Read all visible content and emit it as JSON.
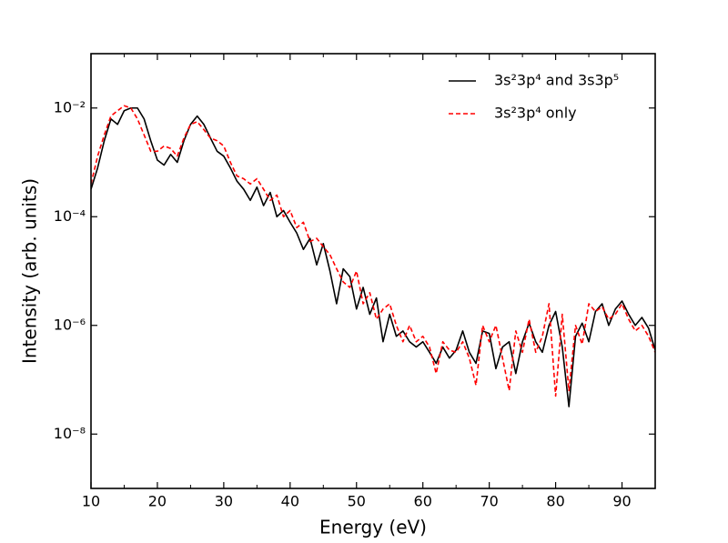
{
  "chart_data": {
    "type": "line",
    "xlabel": "Energy (eV)",
    "ylabel": "Intensity (arb. units)",
    "xlim": [
      10,
      95
    ],
    "ylim": [
      1e-09,
      0.1
    ],
    "yscale": "log",
    "xticks": [
      10,
      20,
      30,
      40,
      50,
      60,
      70,
      80,
      90
    ],
    "xminorticks": [
      15,
      25,
      35,
      45,
      55,
      65,
      75,
      85,
      95
    ],
    "yticks": [
      {
        "value": 1e-08,
        "label": "10⁻⁸"
      },
      {
        "value": 1e-06,
        "label": "10⁻⁶"
      },
      {
        "value": 0.0001,
        "label": "10⁻⁴"
      },
      {
        "value": 0.01,
        "label": "10⁻²"
      }
    ],
    "legend": "upper right",
    "x": [
      10,
      11,
      12,
      13,
      14,
      15,
      16,
      17,
      18,
      19,
      20,
      21,
      22,
      23,
      24,
      25,
      26,
      27,
      28,
      29,
      30,
      31,
      32,
      33,
      34,
      35,
      36,
      37,
      38,
      39,
      40,
      41,
      42,
      43,
      44,
      45,
      46,
      47,
      48,
      49,
      50,
      51,
      52,
      53,
      54,
      55,
      56,
      57,
      58,
      59,
      60,
      61,
      62,
      63,
      64,
      65,
      66,
      67,
      68,
      69,
      70,
      71,
      72,
      73,
      74,
      75,
      76,
      77,
      78,
      79,
      80,
      81,
      82,
      83,
      84,
      85,
      86,
      87,
      88,
      89,
      90,
      91,
      92,
      93,
      94,
      95
    ],
    "series": [
      {
        "name": "3s²3p⁴ and 3s3p⁵",
        "color": "#000000",
        "dash": "solid",
        "values": [
          0.00032,
          0.00079,
          0.0025,
          0.0063,
          0.005,
          0.0089,
          0.01,
          0.01,
          0.0063,
          0.0025,
          0.0011,
          0.00089,
          0.0014,
          0.001,
          0.0025,
          0.005,
          0.0071,
          0.005,
          0.0028,
          0.0016,
          0.0013,
          0.00079,
          0.00045,
          0.00032,
          0.0002,
          0.00035,
          0.00016,
          0.00028,
          0.0001,
          0.00013,
          7.9e-05,
          5e-05,
          2.5e-05,
          4e-05,
          1.3e-05,
          3.2e-05,
          1e-05,
          2.5e-06,
          1.1e-05,
          7.9e-06,
          2e-06,
          5e-06,
          1.6e-06,
          3.2e-06,
          5e-07,
          1.6e-06,
          6.3e-07,
          7.9e-07,
          5e-07,
          4e-07,
          5e-07,
          3.2e-07,
          2e-07,
          4e-07,
          2.5e-07,
          3.5e-07,
          7.9e-07,
          3.2e-07,
          2e-07,
          7.9e-07,
          7.1e-07,
          1.6e-07,
          4e-07,
          5e-07,
          1.3e-07,
          5e-07,
          1.1e-06,
          5e-07,
          3.2e-07,
          1e-06,
          1.8e-06,
          4e-07,
          3.2e-08,
          6.3e-07,
          1.1e-06,
          5e-07,
          1.8e-06,
          2.5e-06,
          1e-06,
          2e-06,
          2.8e-06,
          1.6e-06,
          1e-06,
          1.4e-06,
          8.9e-07,
          3.5e-07
        ]
      },
      {
        "name": "3s²3p⁴ only",
        "color": "#ff0000",
        "dash": "dashed",
        "values": [
          0.0004,
          0.0013,
          0.0032,
          0.0071,
          0.0089,
          0.011,
          0.01,
          0.0063,
          0.0032,
          0.0016,
          0.0016,
          0.002,
          0.0018,
          0.0013,
          0.0028,
          0.005,
          0.0056,
          0.004,
          0.0028,
          0.0025,
          0.002,
          0.001,
          0.00056,
          0.0005,
          0.0004,
          0.0005,
          0.00032,
          0.0002,
          0.00025,
          0.0001,
          0.00013,
          6.3e-05,
          7.9e-05,
          3.5e-05,
          4e-05,
          2.8e-05,
          2e-05,
          1.1e-05,
          6.3e-06,
          5e-06,
          1e-05,
          2.5e-06,
          4e-06,
          1.3e-06,
          2e-06,
          2.5e-06,
          1e-06,
          5e-07,
          1e-06,
          5e-07,
          6.3e-07,
          4e-07,
          1.3e-07,
          5e-07,
          3.5e-07,
          3.2e-07,
          5e-07,
          2.5e-07,
          7.9e-08,
          1e-06,
          5e-07,
          1e-06,
          2.5e-07,
          6.3e-08,
          7.9e-07,
          3.2e-07,
          1.3e-06,
          3.2e-07,
          6.3e-07,
          2.5e-06,
          5e-08,
          1.6e-06,
          6.3e-08,
          1e-06,
          4.5e-07,
          2.5e-06,
          1.8e-06,
          2.2e-06,
          1.3e-06,
          1.6e-06,
          2.5e-06,
          1.3e-06,
          7.9e-07,
          1e-06,
          6.3e-07,
          3.2e-07
        ]
      }
    ]
  }
}
